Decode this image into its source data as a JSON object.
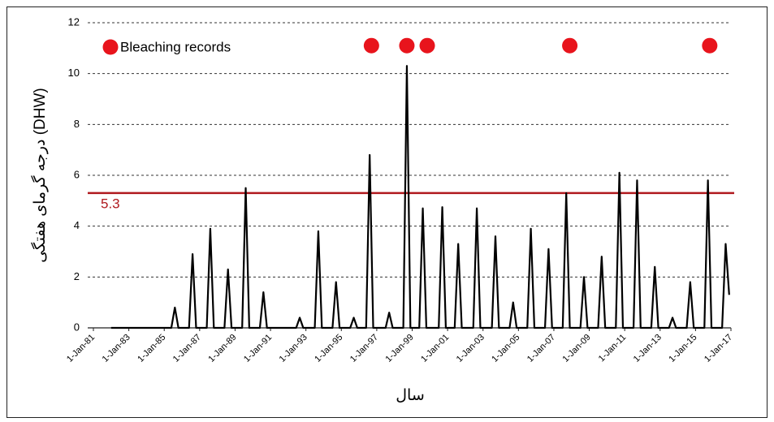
{
  "chart_data": {
    "type": "line",
    "ylabel": "درجه گرمای هفتگی (DHW)",
    "xlabel": "سال",
    "xlim": [
      1981,
      2017
    ],
    "ylim": [
      0,
      12
    ],
    "yticks": [
      0,
      2,
      4,
      6,
      8,
      10,
      12
    ],
    "xticks": [
      {
        "value": 1981,
        "label": "1-Jan-81"
      },
      {
        "value": 1983,
        "label": "1-Jan-83"
      },
      {
        "value": 1985,
        "label": "1-Jan-85"
      },
      {
        "value": 1987,
        "label": "1-Jan-87"
      },
      {
        "value": 1989,
        "label": "1-Jan-89"
      },
      {
        "value": 1991,
        "label": "1-Jan-91"
      },
      {
        "value": 1993,
        "label": "1-Jan-93"
      },
      {
        "value": 1995,
        "label": "1-Jan-95"
      },
      {
        "value": 1997,
        "label": "1-Jan-97"
      },
      {
        "value": 1999,
        "label": "1-Jan-99"
      },
      {
        "value": 2001,
        "label": "1-Jan-01"
      },
      {
        "value": 2003,
        "label": "1-Jan-03"
      },
      {
        "value": 2005,
        "label": "1-Jan-05"
      },
      {
        "value": 2007,
        "label": "1-Jan-07"
      },
      {
        "value": 2009,
        "label": "1-Jan-09"
      },
      {
        "value": 2011,
        "label": "1-Jan-11"
      },
      {
        "value": 2013,
        "label": "1-Jan-13"
      },
      {
        "value": 2015,
        "label": "1-Jan-15"
      },
      {
        "value": 2017,
        "label": "1-Jan-17"
      }
    ],
    "grid": true,
    "threshold": 5.3,
    "threshold_color": "#b0191e",
    "series": [
      {
        "color": "#000000",
        "x": [
          1982,
          1985.4,
          1985.6,
          1985.8,
          1986.4,
          1986.6,
          1986.8,
          1987.4,
          1987.6,
          1987.8,
          1988.4,
          1988.6,
          1988.8,
          1989.4,
          1989.6,
          1989.8,
          1990.4,
          1990.6,
          1990.8,
          1992.45,
          1992.65,
          1992.85,
          1993.5,
          1993.7,
          1993.9,
          1994.5,
          1994.7,
          1994.9,
          1995.5,
          1995.7,
          1995.9,
          1996.4,
          1996.6,
          1996.8,
          1997.5,
          1997.7,
          1997.9,
          1998.5,
          1998.7,
          1998.9,
          1999.4,
          1999.6,
          1999.8,
          2000.5,
          2000.7,
          2000.9,
          2001.4,
          2001.6,
          2001.8,
          2002.45,
          2002.65,
          2002.85,
          2003.5,
          2003.7,
          2003.9,
          2004.5,
          2004.7,
          2004.9,
          2005.5,
          2005.7,
          2005.9,
          2006.5,
          2006.7,
          2006.9,
          2007.5,
          2007.7,
          2007.9,
          2008.5,
          2008.7,
          2008.9,
          2009.5,
          2009.7,
          2009.9,
          2010.5,
          2010.7,
          2010.9,
          2011.5,
          2011.7,
          2011.9,
          2012.5,
          2012.7,
          2012.9,
          2013.5,
          2013.7,
          2013.9,
          2014.5,
          2014.7,
          2014.9,
          2015.5,
          2015.7,
          2015.9,
          2016.5,
          2016.7,
          2016.9
        ],
        "values": [
          0,
          0,
          0.8,
          0,
          0,
          2.9,
          0,
          0,
          3.9,
          0,
          0,
          2.3,
          0,
          0,
          5.5,
          0,
          0,
          1.4,
          0,
          0,
          0.4,
          0,
          0,
          3.8,
          0,
          0,
          1.8,
          0,
          0,
          0.4,
          0,
          0,
          6.8,
          0,
          0,
          0.6,
          0,
          0,
          10.3,
          0,
          0,
          4.7,
          0,
          0,
          4.75,
          0,
          0,
          3.3,
          0,
          0,
          4.7,
          0,
          0,
          3.6,
          0,
          0,
          1.0,
          0,
          0,
          3.9,
          0,
          0,
          3.1,
          0,
          0,
          5.3,
          0,
          0,
          2.0,
          0,
          0,
          2.8,
          0,
          0,
          6.1,
          0,
          0,
          5.8,
          0,
          0,
          2.4,
          0,
          0,
          0.4,
          0,
          0,
          1.8,
          0,
          0,
          5.8,
          0,
          0,
          3.3,
          1.3
        ]
      },
      {
        "name": "Bleaching records",
        "type": "scatter",
        "color": "#e8141c",
        "x": [
          1996.7,
          1998.7,
          1999.85,
          2007.9,
          2015.8
        ],
        "values": [
          11.1,
          11.1,
          11.1,
          11.1,
          11.1
        ]
      }
    ]
  }
}
